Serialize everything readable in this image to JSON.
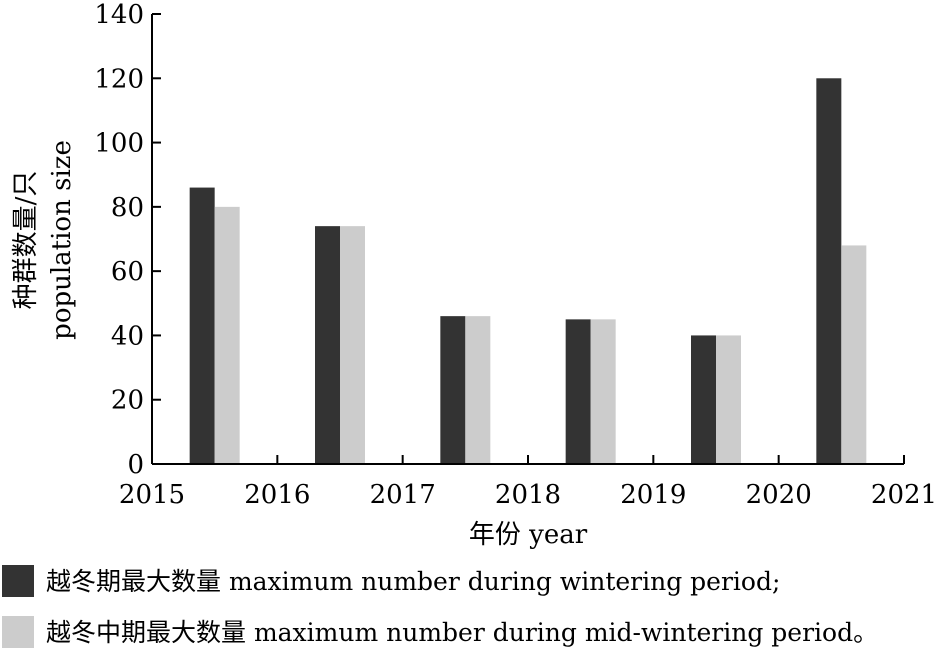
{
  "chart_data": {
    "type": "bar",
    "categories": [
      "2015",
      "2016",
      "2017",
      "2018",
      "2019",
      "2020"
    ],
    "x_ticks": [
      "2015",
      "2016",
      "2017",
      "2018",
      "2019",
      "2020",
      "2021"
    ],
    "series": [
      {
        "name": "越冬期最大数量 maximum number during wintering period;",
        "values": [
          86,
          74,
          46,
          45,
          40,
          120
        ],
        "color": "#333333"
      },
      {
        "name": "越冬中期最大数量 maximum number during mid-wintering period。",
        "values": [
          80,
          74,
          46,
          45,
          40,
          68
        ],
        "color": "#cccccc"
      }
    ],
    "xlabel": "年份 year",
    "ylabel_line1": "种群数量/只",
    "ylabel_line2": "population size",
    "ylim": [
      0,
      140
    ],
    "y_ticks": [
      0,
      20,
      40,
      60,
      80,
      100,
      120,
      140
    ],
    "grid": false,
    "legend_position": "bottom-left"
  }
}
